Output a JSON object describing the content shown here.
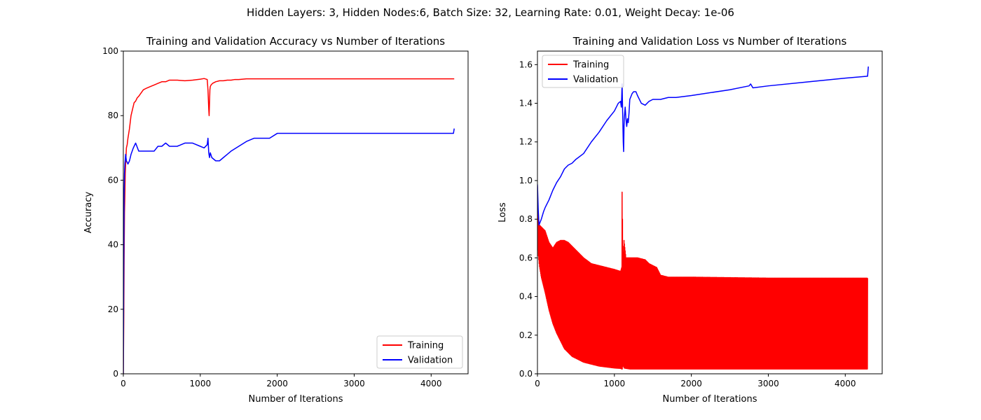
{
  "figure": {
    "suptitle": "Hidden Layers: 3, Hidden Nodes:6, Batch Size: 32, Learning Rate: 0.01, Weight Decay: 1e-06"
  },
  "chart_data": [
    {
      "type": "line",
      "title": "Training and Validation Accuracy vs Number of Iterations",
      "xlabel": "Number of Iterations",
      "ylabel": "Accuracy",
      "xlim": [
        0,
        4480
      ],
      "ylim": [
        0,
        100
      ],
      "xticks": [
        0,
        1000,
        2000,
        3000,
        4000
      ],
      "yticks": [
        0,
        20,
        40,
        60,
        80,
        100
      ],
      "legend": "lower-right",
      "grid": false,
      "series": [
        {
          "name": "Training",
          "color": "#ff0000",
          "x": [
            0,
            5,
            10,
            15,
            20,
            25,
            30,
            40,
            50,
            60,
            80,
            100,
            120,
            140,
            160,
            180,
            200,
            230,
            260,
            300,
            350,
            400,
            450,
            500,
            550,
            600,
            700,
            800,
            900,
            1000,
            1050,
            1090,
            1100,
            1110,
            1115,
            1120,
            1125,
            1130,
            1140,
            1160,
            1200,
            1250,
            1300,
            1350,
            1400,
            1450,
            1500,
            1550,
            1600,
            2000,
            3000,
            4000,
            4300
          ],
          "y": [
            0,
            15,
            35,
            50,
            55,
            62,
            65,
            70,
            71,
            73,
            76,
            80,
            82,
            84,
            84.5,
            85.5,
            86,
            87,
            88,
            88.5,
            89,
            89.5,
            90,
            90.5,
            90.5,
            91,
            91,
            90.8,
            91,
            91.3,
            91.5,
            91.2,
            88,
            82,
            80,
            84,
            88,
            89,
            89.5,
            90,
            90.5,
            90.8,
            90.8,
            91,
            91,
            91.2,
            91.2,
            91.3,
            91.4,
            91.4,
            91.4,
            91.4,
            91.4
          ]
        },
        {
          "name": "Validation",
          "color": "#0000ff",
          "x": [
            0,
            5,
            10,
            15,
            20,
            30,
            40,
            60,
            80,
            100,
            130,
            160,
            200,
            250,
            300,
            400,
            450,
            500,
            550,
            600,
            700,
            800,
            900,
            1000,
            1050,
            1090,
            1100,
            1110,
            1120,
            1130,
            1150,
            1200,
            1250,
            1300,
            1350,
            1400,
            1500,
            1600,
            1700,
            1800,
            1900,
            2000,
            3000,
            4000,
            4290,
            4300
          ],
          "y": [
            0,
            30,
            55,
            62,
            65,
            68,
            66,
            65,
            66,
            68,
            70,
            71.5,
            69,
            69,
            69,
            69,
            70.5,
            70.5,
            71.5,
            70.5,
            70.5,
            71.5,
            71.5,
            70.5,
            70,
            71,
            73,
            68.5,
            67,
            68.5,
            67,
            66,
            66,
            67,
            68,
            69,
            70.5,
            72,
            73,
            73,
            73,
            74.5,
            74.5,
            74.5,
            74.5,
            76
          ]
        }
      ]
    },
    {
      "type": "line",
      "title": "Training and Validation Loss vs Number of Iterations",
      "xlabel": "Number of Iterations",
      "ylabel": "Loss",
      "xlim": [
        0,
        4480
      ],
      "ylim": [
        0,
        1.67
      ],
      "xticks": [
        0,
        1000,
        2000,
        3000,
        4000
      ],
      "yticks": [
        0.0,
        0.2,
        0.4,
        0.6,
        0.8,
        1.0,
        1.2,
        1.4,
        1.6
      ],
      "legend": "top-left",
      "grid": false,
      "series": [
        {
          "name": "Training",
          "color": "#ff0000",
          "style": "oscillating band between min and max",
          "x": [
            0,
            10,
            25,
            50,
            100,
            150,
            200,
            250,
            300,
            350,
            400,
            450,
            500,
            600,
            700,
            800,
            900,
            1000,
            1080,
            1095,
            1100,
            1105,
            1110,
            1125,
            1150,
            1200,
            1300,
            1400,
            1450,
            1500,
            1550,
            1600,
            1700,
            2000,
            3000,
            4000,
            4290
          ],
          "max": [
            0.97,
            0.8,
            0.77,
            0.76,
            0.74,
            0.68,
            0.65,
            0.68,
            0.69,
            0.69,
            0.68,
            0.66,
            0.64,
            0.6,
            0.57,
            0.56,
            0.55,
            0.54,
            0.53,
            0.55,
            0.94,
            0.8,
            0.6,
            0.69,
            0.6,
            0.6,
            0.6,
            0.59,
            0.57,
            0.56,
            0.55,
            0.51,
            0.5,
            0.5,
            0.495,
            0.495,
            0.495
          ],
          "min": [
            0.7,
            0.62,
            0.56,
            0.5,
            0.42,
            0.33,
            0.26,
            0.21,
            0.17,
            0.13,
            0.11,
            0.09,
            0.08,
            0.06,
            0.05,
            0.04,
            0.035,
            0.03,
            0.028,
            0.025,
            0.025,
            0.025,
            0.05,
            0.03,
            0.028,
            0.025,
            0.025,
            0.025,
            0.025,
            0.025,
            0.025,
            0.025,
            0.025,
            0.025,
            0.025,
            0.025,
            0.025
          ]
        },
        {
          "name": "Validation",
          "color": "#0000ff",
          "x": [
            0,
            10,
            20,
            30,
            50,
            80,
            100,
            150,
            200,
            250,
            300,
            350,
            400,
            450,
            500,
            600,
            700,
            800,
            900,
            1000,
            1050,
            1080,
            1090,
            1095,
            1100,
            1105,
            1110,
            1115,
            1120,
            1125,
            1130,
            1140,
            1150,
            1160,
            1170,
            1180,
            1190,
            1200,
            1230,
            1250,
            1280,
            1300,
            1350,
            1400,
            1450,
            1500,
            1550,
            1600,
            1700,
            1800,
            2000,
            2500,
            2750,
            2770,
            2800,
            3000,
            3500,
            4000,
            4290,
            4300
          ],
          "y": [
            0.98,
            0.85,
            0.77,
            0.78,
            0.8,
            0.84,
            0.86,
            0.9,
            0.95,
            0.99,
            1.02,
            1.06,
            1.08,
            1.09,
            1.11,
            1.14,
            1.2,
            1.25,
            1.31,
            1.36,
            1.4,
            1.41,
            1.38,
            1.43,
            1.5,
            1.4,
            1.3,
            1.2,
            1.15,
            1.28,
            1.33,
            1.38,
            1.32,
            1.28,
            1.32,
            1.3,
            1.35,
            1.42,
            1.45,
            1.46,
            1.46,
            1.44,
            1.4,
            1.39,
            1.41,
            1.42,
            1.42,
            1.42,
            1.43,
            1.43,
            1.44,
            1.47,
            1.49,
            1.5,
            1.48,
            1.49,
            1.51,
            1.53,
            1.54,
            1.59
          ]
        }
      ]
    }
  ]
}
